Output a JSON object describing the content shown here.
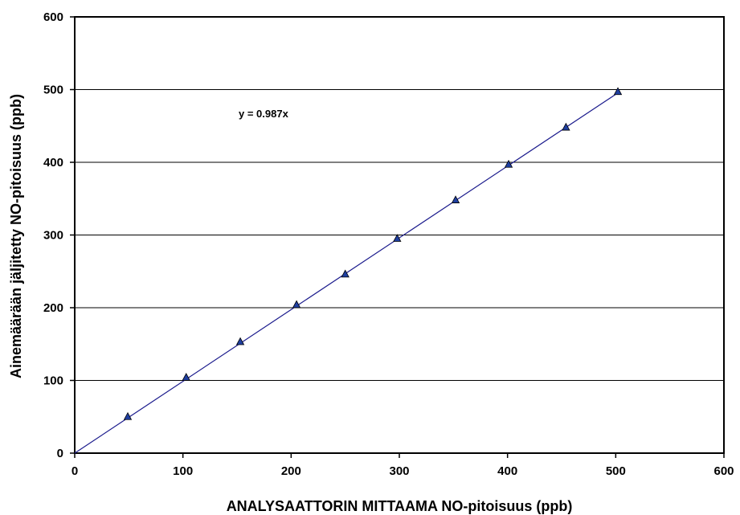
{
  "chart_data": {
    "type": "scatter",
    "title": "",
    "xlabel": "ANALYSAATTORIN MITTAAMA  NO-pitoisuus (ppb)",
    "ylabel": "Ainemäärään jäljitetty NO-pitoisuus (ppb)",
    "xlim": [
      0,
      600
    ],
    "ylim": [
      0,
      600
    ],
    "xticks": [
      0,
      100,
      200,
      300,
      400,
      500,
      600
    ],
    "yticks": [
      0,
      100,
      200,
      300,
      400,
      500,
      600
    ],
    "grid": "horizontal",
    "legend": "none",
    "series": [
      {
        "x": [
          49,
          103,
          153,
          205,
          250,
          298,
          352,
          401,
          454,
          502
        ],
        "y": [
          50,
          104,
          153,
          204,
          246,
          295,
          348,
          397,
          448,
          497
        ],
        "marker": "triangle",
        "color": "#1f3fa0"
      }
    ],
    "trendline": {
      "slope": 0.987,
      "x_range": [
        0,
        502
      ],
      "equation_label": "y = 0.987x",
      "color": "#1a1a8c"
    }
  }
}
